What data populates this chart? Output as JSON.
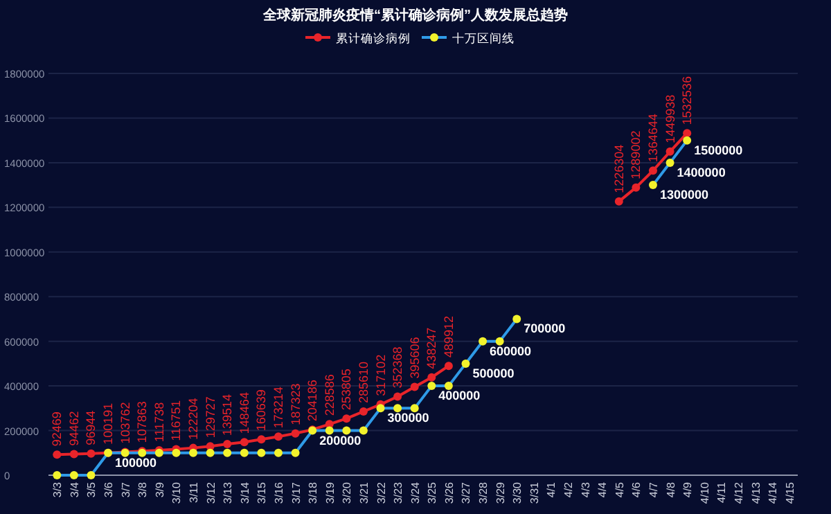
{
  "chart_data": {
    "type": "line",
    "title": "全球新冠肺炎疫情“累计确诊病例”人数发展总趋势",
    "categories": [
      "3/3",
      "3/4",
      "3/5",
      "3/6",
      "3/7",
      "3/8",
      "3/9",
      "3/10",
      "3/11",
      "3/12",
      "3/13",
      "3/14",
      "3/15",
      "3/16",
      "3/17",
      "3/18",
      "3/19",
      "3/20",
      "3/21",
      "3/22",
      "3/23",
      "3/24",
      "3/25",
      "3/26",
      "3/27",
      "3/28",
      "3/29",
      "3/30",
      "3/31",
      "4/1",
      "4/2",
      "4/3",
      "4/4",
      "4/5",
      "4/6",
      "4/7",
      "4/8",
      "4/9",
      "4/10",
      "4/11",
      "4/12",
      "4/13",
      "4/14",
      "4/15"
    ],
    "series": [
      {
        "name": "累计确诊病例",
        "color": "#e8242a",
        "values": [
          92469,
          94462,
          96944,
          100191,
          103762,
          107863,
          111738,
          116751,
          122204,
          129727,
          139514,
          148464,
          160639,
          173214,
          187323,
          204186,
          228586,
          253805,
          285610,
          317102,
          352368,
          395606,
          438247,
          489912,
          null,
          null,
          null,
          null,
          null,
          null,
          null,
          null,
          null,
          1226304,
          1289002,
          1364644,
          1449938,
          1532536,
          null,
          null,
          null,
          null,
          null,
          null
        ],
        "value_labels": [
          "92469",
          "94462",
          "96944",
          "100191",
          "103762",
          "107863",
          "111738",
          "116751",
          "122204",
          "129727",
          "139514",
          "148464",
          "160639",
          "173214",
          "187323",
          "204186",
          "228586",
          "253805",
          "285610",
          "317102",
          "352368",
          "395606",
          "438247",
          "489912",
          null,
          null,
          null,
          null,
          null,
          null,
          null,
          null,
          null,
          "1226304",
          "1289002",
          "1364644",
          "1449938",
          "1532536",
          null,
          null,
          null,
          null,
          null,
          null
        ]
      },
      {
        "name": "十万区间线",
        "color": "#2f9be8",
        "values": [
          0,
          0,
          0,
          100000,
          100000,
          100000,
          100000,
          100000,
          100000,
          100000,
          100000,
          100000,
          100000,
          100000,
          100000,
          200000,
          200000,
          200000,
          200000,
          300000,
          300000,
          300000,
          400000,
          400000,
          500000,
          600000,
          600000,
          700000,
          null,
          null,
          null,
          null,
          null,
          null,
          null,
          1300000,
          1400000,
          1500000,
          null,
          null,
          null,
          null,
          null,
          null
        ],
        "colors": [
          "#f2f22c",
          "#f2f22c",
          "#f2f22c",
          "#f2f22c",
          "#f2f22c",
          "#f2f22c",
          "#f2f22c",
          "#f2f22c",
          "#f2f22c",
          "#f2f22c",
          "#f2f22c",
          "#f2f22c",
          "#f2f22c",
          "#f2f22c",
          "#f2f22c",
          "#f2f22c",
          "#f2f22c",
          "#f2f22c",
          "#f2f22c",
          "#f2f22c",
          "#f2f22c",
          "#f2f22c",
          "#f2f22c",
          "#f2f22c",
          "#f2f22c",
          "#f2f22c",
          "#f2f22c",
          "#f2f22c",
          null,
          null,
          null,
          null,
          null,
          null,
          null,
          "#f2f22c",
          "#f2f22c",
          "#f2f22c",
          null,
          null,
          null,
          null,
          null,
          null
        ],
        "value_labels": [
          null,
          null,
          null,
          "100000",
          null,
          null,
          null,
          null,
          null,
          null,
          null,
          null,
          null,
          null,
          null,
          "200000",
          null,
          null,
          null,
          "300000",
          null,
          null,
          "400000",
          null,
          "500000",
          "600000",
          null,
          "700000",
          null,
          null,
          null,
          null,
          null,
          null,
          null,
          "1300000",
          "1400000",
          "1500000",
          null,
          null,
          null,
          null,
          null,
          null
        ]
      }
    ],
    "ylim": [
      0,
      1800000
    ],
    "yticks": [
      0,
      200000,
      400000,
      600000,
      800000,
      1000000,
      1200000,
      1400000,
      1600000,
      1800000
    ],
    "grid": "y",
    "legend": "top",
    "marker": "circle"
  }
}
